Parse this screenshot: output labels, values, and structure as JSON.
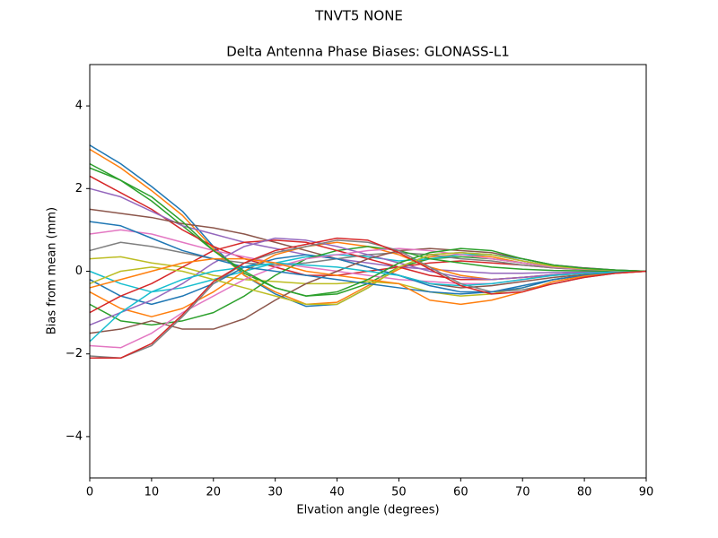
{
  "chart_data": {
    "type": "line",
    "suptitle": "TNVT5           NONE",
    "title": "Delta Antenna Phase Biases: GLONASS-L1",
    "xlabel": "Elvation angle (degrees)",
    "ylabel": "Bias from mean (mm)",
    "x": [
      0,
      5,
      10,
      15,
      20,
      25,
      30,
      35,
      40,
      45,
      50,
      55,
      60,
      65,
      70,
      75,
      80,
      85,
      90
    ],
    "xlim": [
      0,
      90
    ],
    "xticks": [
      0,
      10,
      20,
      30,
      40,
      50,
      60,
      70,
      80,
      90
    ],
    "ylim": [
      -5,
      5
    ],
    "yticks": [
      {
        "value": -4,
        "label": "−4"
      },
      {
        "value": -2,
        "label": "−2"
      },
      0,
      2,
      4
    ],
    "grid": false,
    "series": [
      {
        "color": "#1f77b4",
        "values": [
          3.05,
          2.6,
          2.05,
          1.45,
          0.6,
          -0.1,
          -0.55,
          -0.85,
          -0.8,
          -0.4,
          0.1,
          0.4,
          0.45,
          0.4,
          0.25,
          0.12,
          0.05,
          0.02,
          0
        ]
      },
      {
        "color": "#ff7f0e",
        "values": [
          2.95,
          2.5,
          1.95,
          1.35,
          0.55,
          -0.1,
          -0.5,
          -0.8,
          -0.75,
          -0.35,
          0.05,
          0.35,
          0.4,
          0.35,
          0.2,
          0.1,
          0.05,
          0.02,
          0
        ]
      },
      {
        "color": "#2ca02c",
        "values": [
          2.6,
          2.2,
          1.7,
          1.1,
          0.5,
          -0.05,
          -0.4,
          -0.6,
          -0.55,
          -0.3,
          0.1,
          0.3,
          0.35,
          0.3,
          0.2,
          0.1,
          0.05,
          0.02,
          0
        ]
      },
      {
        "color": "#d62728",
        "values": [
          2.3,
          1.9,
          1.5,
          1.0,
          0.6,
          0.3,
          0.1,
          -0.1,
          -0.1,
          0.0,
          0.1,
          0.2,
          0.25,
          0.2,
          0.15,
          0.08,
          0.04,
          0.02,
          0
        ]
      },
      {
        "color": "#9467bd",
        "values": [
          2.0,
          1.8,
          1.45,
          1.1,
          0.9,
          0.7,
          0.55,
          0.4,
          0.3,
          0.2,
          0.1,
          0.05,
          0.0,
          -0.05,
          -0.05,
          -0.03,
          -0.02,
          -0.01,
          0
        ]
      },
      {
        "color": "#8c564b",
        "values": [
          1.5,
          1.4,
          1.3,
          1.15,
          1.05,
          0.9,
          0.7,
          0.5,
          0.3,
          0.1,
          -0.1,
          -0.3,
          -0.4,
          -0.35,
          -0.25,
          -0.15,
          -0.08,
          -0.03,
          0
        ]
      },
      {
        "color": "#e377c2",
        "values": [
          0.9,
          1.0,
          0.9,
          0.7,
          0.5,
          0.35,
          0.2,
          0.1,
          0.0,
          -0.1,
          -0.2,
          -0.25,
          -0.3,
          -0.3,
          -0.2,
          -0.1,
          -0.05,
          -0.02,
          0
        ]
      },
      {
        "color": "#7f7f7f",
        "values": [
          0.5,
          0.7,
          0.6,
          0.45,
          0.3,
          0.2,
          0.15,
          0.2,
          0.3,
          0.4,
          0.45,
          0.4,
          0.3,
          0.25,
          0.15,
          0.08,
          0.04,
          0.02,
          0
        ]
      },
      {
        "color": "#bcbd22",
        "values": [
          0.3,
          0.35,
          0.2,
          0.1,
          -0.1,
          -0.2,
          -0.25,
          -0.3,
          -0.3,
          -0.25,
          -0.3,
          -0.5,
          -0.6,
          -0.55,
          -0.4,
          -0.2,
          -0.1,
          -0.04,
          0
        ]
      },
      {
        "color": "#17becf",
        "values": [
          0.0,
          -0.3,
          -0.5,
          -0.4,
          -0.2,
          0.0,
          0.2,
          0.35,
          0.4,
          0.35,
          0.25,
          0.3,
          0.4,
          0.4,
          0.3,
          0.15,
          0.08,
          0.03,
          0
        ]
      },
      {
        "color": "#1f77b4",
        "values": [
          -0.2,
          -0.6,
          -0.8,
          -0.6,
          -0.3,
          0.1,
          0.3,
          0.4,
          0.3,
          0.1,
          -0.1,
          -0.35,
          -0.5,
          -0.5,
          -0.4,
          -0.2,
          -0.1,
          -0.04,
          0
        ]
      },
      {
        "color": "#ff7f0e",
        "values": [
          -0.5,
          -0.9,
          -1.1,
          -0.9,
          -0.5,
          0.0,
          0.4,
          0.6,
          0.7,
          0.6,
          0.4,
          0.1,
          -0.1,
          -0.2,
          -0.15,
          -0.1,
          -0.05,
          -0.02,
          0
        ]
      },
      {
        "color": "#2ca02c",
        "values": [
          -0.8,
          -1.2,
          -1.3,
          -1.2,
          -1.0,
          -0.6,
          -0.1,
          0.3,
          0.5,
          0.6,
          0.5,
          0.3,
          0.2,
          0.1,
          0.05,
          0.02,
          0.01,
          0.0,
          0
        ]
      },
      {
        "color": "#d62728",
        "values": [
          -1.0,
          -0.6,
          -0.3,
          0.1,
          0.5,
          0.7,
          0.75,
          0.7,
          0.5,
          0.3,
          0.1,
          -0.1,
          -0.2,
          -0.2,
          -0.15,
          -0.08,
          -0.04,
          -0.02,
          0
        ]
      },
      {
        "color": "#9467bd",
        "values": [
          -1.3,
          -1.0,
          -0.7,
          -0.3,
          0.2,
          0.6,
          0.8,
          0.75,
          0.6,
          0.4,
          0.2,
          0.0,
          -0.15,
          -0.2,
          -0.15,
          -0.08,
          -0.04,
          -0.02,
          0
        ]
      },
      {
        "color": "#8c564b",
        "values": [
          -1.5,
          -1.4,
          -1.2,
          -1.4,
          -1.4,
          -1.15,
          -0.7,
          -0.3,
          0.0,
          0.3,
          0.5,
          0.55,
          0.5,
          0.45,
          0.3,
          0.15,
          0.08,
          0.03,
          0
        ]
      },
      {
        "color": "#e377c2",
        "values": [
          -1.8,
          -1.85,
          -1.5,
          -1.0,
          -0.6,
          -0.2,
          0.1,
          0.3,
          0.4,
          0.5,
          0.55,
          0.5,
          0.4,
          0.3,
          0.2,
          0.1,
          0.05,
          0.02,
          0
        ]
      },
      {
        "color": "#7f7f7f",
        "values": [
          -2.05,
          -2.1,
          -1.8,
          -1.1,
          -0.3,
          0.2,
          0.45,
          0.6,
          0.75,
          0.7,
          0.5,
          0.1,
          -0.3,
          -0.5,
          -0.45,
          -0.3,
          -0.15,
          -0.05,
          0
        ]
      },
      {
        "color": "#bcbd22",
        "values": [
          -0.3,
          0.0,
          0.1,
          0.0,
          -0.2,
          -0.4,
          -0.6,
          -0.8,
          -0.8,
          -0.4,
          0.1,
          0.4,
          0.45,
          0.4,
          0.25,
          0.12,
          0.06,
          0.02,
          0
        ]
      },
      {
        "color": "#17becf",
        "values": [
          -1.7,
          -1.0,
          -0.5,
          -0.2,
          0.0,
          0.1,
          0.2,
          0.15,
          0.1,
          0.0,
          -0.1,
          -0.3,
          -0.35,
          -0.3,
          -0.2,
          -0.1,
          -0.05,
          -0.02,
          0
        ]
      },
      {
        "color": "#1f77b4",
        "values": [
          1.2,
          1.1,
          0.8,
          0.5,
          0.3,
          0.1,
          0.0,
          -0.1,
          -0.2,
          -0.3,
          -0.4,
          -0.5,
          -0.55,
          -0.5,
          -0.35,
          -0.2,
          -0.1,
          -0.04,
          0
        ]
      },
      {
        "color": "#ff7f0e",
        "values": [
          -0.4,
          -0.2,
          0.0,
          0.2,
          0.3,
          0.3,
          0.2,
          0.0,
          -0.1,
          -0.2,
          -0.3,
          -0.7,
          -0.8,
          -0.7,
          -0.5,
          -0.25,
          -0.12,
          -0.05,
          0
        ]
      },
      {
        "color": "#2ca02c",
        "values": [
          2.5,
          2.2,
          1.8,
          1.2,
          0.5,
          0.0,
          -0.4,
          -0.6,
          -0.5,
          -0.2,
          0.2,
          0.45,
          0.55,
          0.5,
          0.3,
          0.15,
          0.07,
          0.03,
          0
        ]
      },
      {
        "color": "#d62728",
        "values": [
          -2.1,
          -2.1,
          -1.75,
          -1.05,
          -0.25,
          0.2,
          0.5,
          0.65,
          0.8,
          0.75,
          0.45,
          0.05,
          -0.35,
          -0.55,
          -0.5,
          -0.3,
          -0.15,
          -0.05,
          0
        ]
      }
    ]
  }
}
